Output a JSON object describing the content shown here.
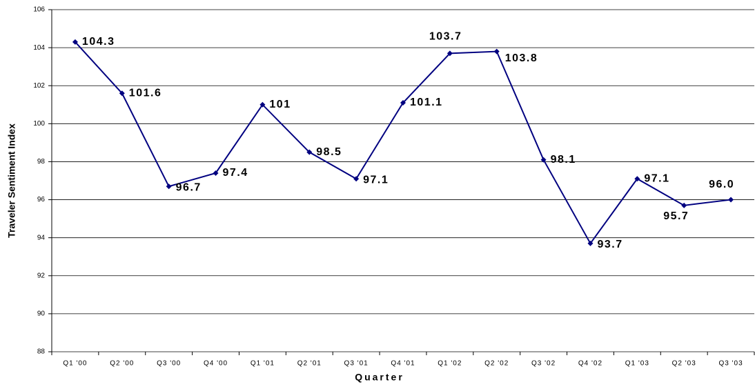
{
  "chart_data": {
    "type": "line",
    "x_label": "Quarter",
    "y_label": "Traveler Sentiment Index",
    "categories": [
      "Q1 '00",
      "Q2 '00",
      "Q3 '00",
      "Q4 '00",
      "Q1 '01",
      "Q2 '01",
      "Q3 '01",
      "Q4 '01",
      "Q1 '02",
      "Q2 '02",
      "Q3 '02",
      "Q4 '02",
      "Q1 '03",
      "Q2 '03",
      "Q3 '03"
    ],
    "values": [
      104.3,
      101.6,
      96.7,
      97.4,
      101,
      98.5,
      97.1,
      101.1,
      103.7,
      103.8,
      98.1,
      93.7,
      97.1,
      95.7,
      96.0
    ],
    "value_labels": [
      "104.3",
      "101.6",
      "96.7",
      "97.4",
      "101",
      "98.5",
      "97.1",
      "101.1",
      "103.7",
      "103.8",
      "98.1",
      "93.7",
      "97.1",
      "95.7",
      "96.0"
    ],
    "color": "#000080",
    "ylim": [
      88,
      106
    ],
    "yticks": [
      88,
      90,
      92,
      94,
      96,
      98,
      100,
      102,
      104,
      106
    ],
    "grid": true
  }
}
